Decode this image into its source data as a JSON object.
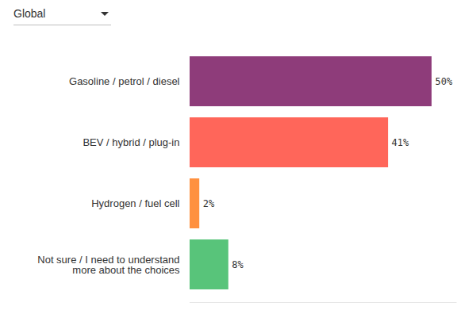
{
  "chart_data": {
    "type": "bar",
    "orientation": "horizontal",
    "annotations": [
      "Global"
    ],
    "categories": [
      "Gasoline / petrol / diesel",
      "BEV / hybrid / plug-in",
      "Hydrogen / fuel cell",
      "Not sure / I need to understand more about the choices"
    ],
    "values": [
      50,
      41,
      2,
      8
    ],
    "value_labels": [
      "50%",
      "41%",
      "2%",
      "8%"
    ],
    "colors": [
      "#8e3c7a",
      "#ff665a",
      "#ff9140",
      "#58c47a"
    ],
    "xlim": [
      0,
      55
    ],
    "data_labels": true,
    "tick_labels": "y",
    "grid": false
  }
}
